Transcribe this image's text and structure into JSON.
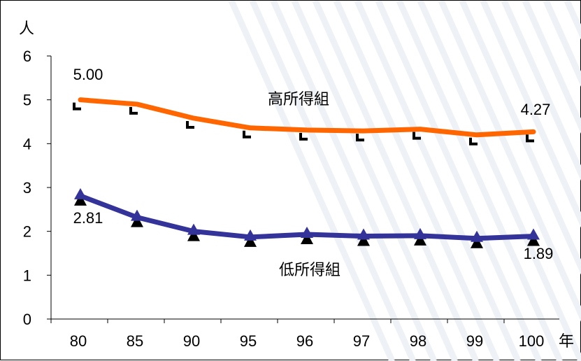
{
  "chart_data": {
    "type": "line",
    "title": "",
    "xlabel": "年",
    "ylabel": "人",
    "categories": [
      "80",
      "85",
      "90",
      "95",
      "96",
      "97",
      "98",
      "99",
      "100"
    ],
    "ylim": [
      0,
      6
    ],
    "yticks": [
      "0",
      "1",
      "2",
      "3",
      "4",
      "5",
      "6"
    ],
    "grid": false,
    "series": [
      {
        "name": "高所得組",
        "color": "#FF6600",
        "marker": "square-bracket",
        "values": [
          5.0,
          4.9,
          4.58,
          4.36,
          4.31,
          4.29,
          4.33,
          4.2,
          4.27
        ]
      },
      {
        "name": "低所得組",
        "color": "#333399",
        "marker": "triangle",
        "values": [
          2.81,
          2.32,
          2.0,
          1.87,
          1.93,
          1.89,
          1.9,
          1.84,
          1.89
        ]
      }
    ],
    "annotations": [
      {
        "series": 0,
        "index": 0,
        "text": "5.00"
      },
      {
        "series": 0,
        "index": 8,
        "text": "4.27"
      },
      {
        "series": 1,
        "index": 0,
        "text": "2.81"
      },
      {
        "series": 1,
        "index": 8,
        "text": "1.89"
      }
    ]
  }
}
